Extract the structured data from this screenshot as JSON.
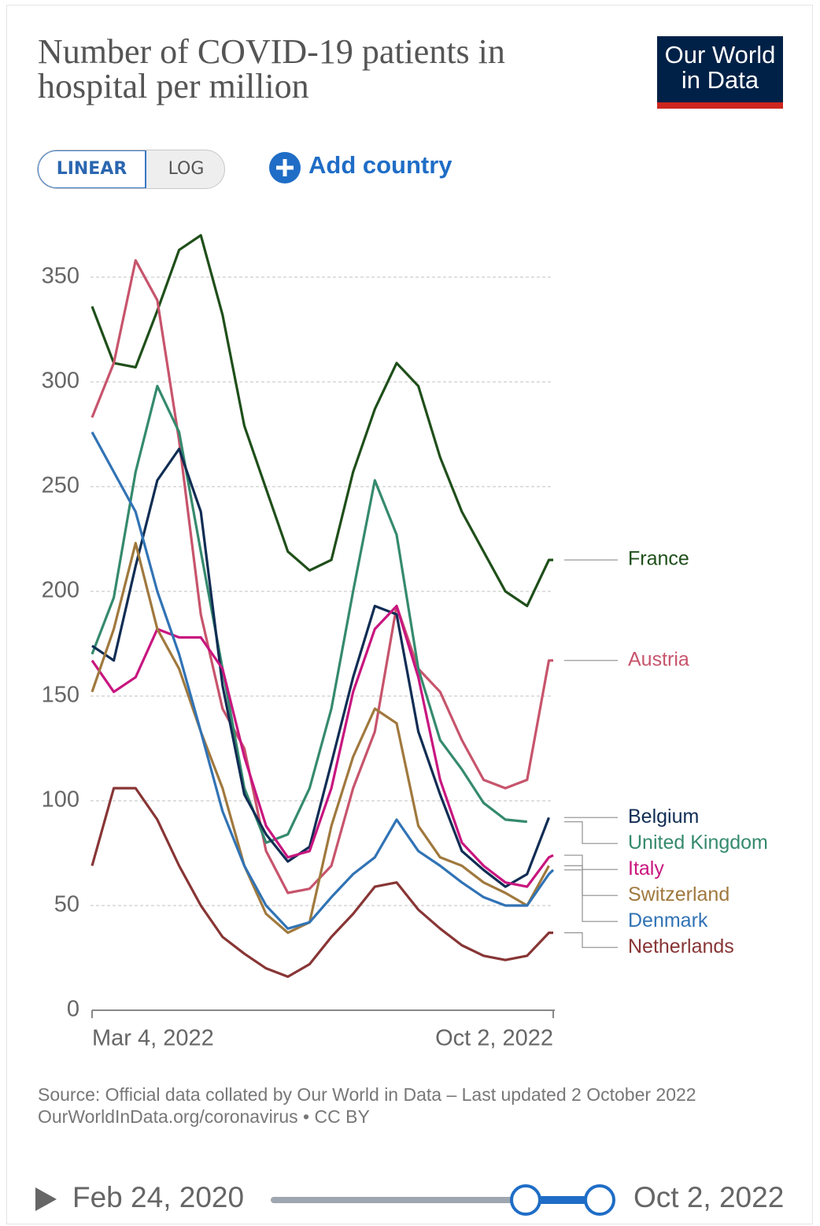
{
  "header": {
    "title": "Number of COVID-19 patients in hospital per million",
    "logo": "Our World in Data"
  },
  "controls": {
    "linear": "LINEAR",
    "log": "LOG",
    "add": "Add country"
  },
  "footer": {
    "source": "Source: Official data collated by Our World in Data – Last updated 2 October 2022",
    "link": "OurWorldInData.org/coronavirus • CC BY"
  },
  "timeline": {
    "start": "Feb 24, 2020",
    "end": "Oct 2, 2022"
  },
  "chart_data": {
    "type": "line",
    "x": [
      "Mar 4, 2022",
      "Mar 14, 2022",
      "Mar 24, 2022",
      "Apr 3, 2022",
      "Apr 13, 2022",
      "Apr 23, 2022",
      "May 3, 2022",
      "May 13, 2022",
      "May 23, 2022",
      "Jun 2, 2022",
      "Jun 12, 2022",
      "Jun 22, 2022",
      "Jul 2, 2022",
      "Jul 12, 2022",
      "Jul 22, 2022",
      "Aug 1, 2022",
      "Aug 11, 2022",
      "Aug 21, 2022",
      "Aug 31, 2022",
      "Sep 10, 2022",
      "Sep 20, 2022",
      "Sep 30, 2022",
      "Oct 2, 2022"
    ],
    "xlim": [
      "Mar 4, 2022",
      "Oct 2, 2022"
    ],
    "xticks": [
      "Mar 4, 2022",
      "Oct 2, 2022"
    ],
    "ylim": [
      0,
      350
    ],
    "yticks": [
      0,
      50,
      100,
      150,
      200,
      250,
      300,
      350
    ],
    "grid": true,
    "series": [
      {
        "name": "France",
        "color": "#1f4f1a",
        "values": [
          336,
          309,
          307,
          334,
          363,
          370,
          332,
          279,
          249,
          219,
          210,
          215,
          257,
          287,
          309,
          298,
          264,
          238,
          219,
          200,
          193,
          215,
          215
        ]
      },
      {
        "name": "Austria",
        "color": "#c7546c",
        "values": [
          283,
          309,
          358,
          339,
          272,
          189,
          144,
          125,
          76,
          56,
          58,
          69,
          106,
          133,
          193,
          163,
          152,
          129,
          110,
          106,
          110,
          167,
          167
        ]
      },
      {
        "name": "United Kingdom",
        "color": "#358a6e",
        "values": [
          170,
          197,
          257,
          298,
          276,
          219,
          163,
          106,
          80,
          84,
          106,
          144,
          200,
          253,
          227,
          163,
          129,
          115,
          99,
          91,
          90,
          null,
          null
        ]
      },
      {
        "name": "Belgium",
        "color": "#102d54",
        "values": [
          174,
          167,
          212,
          253,
          268,
          238,
          155,
          103,
          84,
          71,
          78,
          118,
          159,
          193,
          189,
          133,
          103,
          76,
          67,
          59,
          65,
          92,
          null
        ]
      },
      {
        "name": "Italy",
        "color": "#c8167f",
        "values": [
          167,
          152,
          159,
          182,
          178,
          178,
          163,
          121,
          88,
          73,
          76,
          106,
          152,
          182,
          193,
          159,
          110,
          80,
          69,
          61,
          59,
          73,
          74
        ]
      },
      {
        "name": "Switzerland",
        "color": "#a0793e",
        "values": [
          152,
          182,
          223,
          182,
          163,
          133,
          106,
          69,
          46,
          37,
          42,
          88,
          121,
          144,
          137,
          88,
          73,
          69,
          61,
          56,
          50,
          69,
          null
        ]
      },
      {
        "name": "Denmark",
        "color": "#3173b5",
        "values": [
          276,
          257,
          238,
          200,
          170,
          133,
          95,
          69,
          50,
          39,
          42,
          54,
          65,
          73,
          91,
          76,
          69,
          61,
          54,
          50,
          50,
          65,
          67
        ]
      },
      {
        "name": "Netherlands",
        "color": "#883535",
        "values": [
          69,
          106,
          106,
          91,
          69,
          50,
          35,
          27,
          20,
          16,
          22,
          35,
          46,
          59,
          61,
          48,
          39,
          31,
          26,
          24,
          26,
          37,
          37
        ]
      }
    ]
  }
}
